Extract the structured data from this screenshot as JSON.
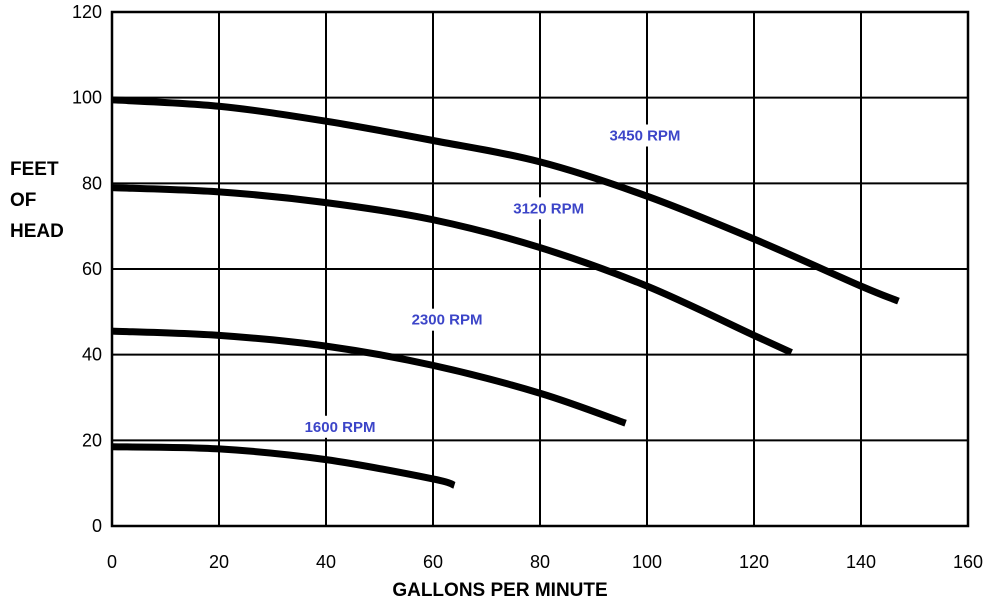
{
  "chart_data": {
    "type": "line",
    "ylabel_lines": [
      "FEET",
      "OF",
      "HEAD"
    ],
    "xlabel": "GALLONS PER MINUTE",
    "xlim": [
      0,
      160
    ],
    "ylim": [
      0,
      120
    ],
    "x_ticks": [
      "0",
      "20",
      "40",
      "60",
      "80",
      "100",
      "120",
      "140",
      "160"
    ],
    "y_ticks": [
      "0",
      "20",
      "40",
      "60",
      "80",
      "100",
      "120"
    ],
    "grid": true,
    "series": [
      {
        "name": "3450 RPM",
        "color": "#3c45c8",
        "x": [
          0,
          20,
          40,
          60,
          80,
          100,
          120,
          140,
          147
        ],
        "y": [
          99.5,
          98,
          94.5,
          90,
          85,
          77,
          67,
          56,
          52.5
        ]
      },
      {
        "name": "3120 RPM",
        "color": "#3c45c8",
        "x": [
          0,
          20,
          40,
          60,
          80,
          100,
          120,
          127
        ],
        "y": [
          79,
          78,
          75.5,
          71.5,
          65,
          56,
          44.5,
          40.5
        ]
      },
      {
        "name": "2300 RPM",
        "color": "#3c45c8",
        "x": [
          0,
          20,
          40,
          60,
          80,
          96
        ],
        "y": [
          45.5,
          44.5,
          42,
          37.5,
          31,
          24
        ]
      },
      {
        "name": "1600 RPM",
        "color": "#3c45c8",
        "x": [
          0,
          20,
          40,
          60,
          64
        ],
        "y": [
          18.5,
          18,
          15.5,
          11,
          9.5
        ]
      }
    ],
    "annotations": [
      {
        "text": "3450 RPM",
        "x": 93,
        "y": 90
      },
      {
        "text": "3120 RPM",
        "x": 75,
        "y": 73
      },
      {
        "text": "2300 RPM",
        "x": 56,
        "y": 47
      },
      {
        "text": "1600 RPM",
        "x": 36,
        "y": 22
      }
    ]
  }
}
